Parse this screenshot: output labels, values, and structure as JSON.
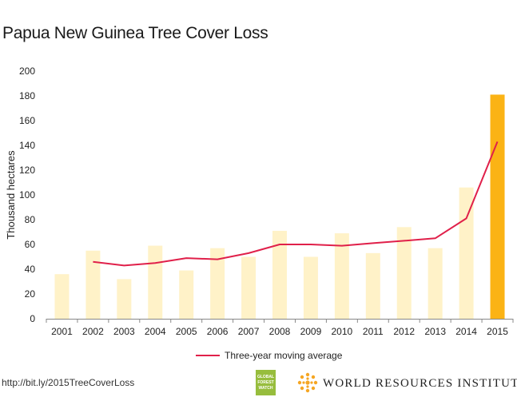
{
  "title": "Papua New Guinea Tree Cover Loss",
  "footer": {
    "url": "http://bit.ly/2015TreeCoverLoss",
    "org": "WORLD RESOURCES INSTITUTE",
    "gfw_logo_text": "GLOBAL FOREST WATCH"
  },
  "colors": {
    "bar": "#fff2c8",
    "bar_highlight": "#fbb315",
    "line": "#e0204a",
    "gfw_green": "#97bd3d",
    "wri_orange": "#f5a623"
  },
  "chart_data": {
    "type": "bar",
    "ylabel": "Thousand hectares",
    "ylim": [
      0,
      200
    ],
    "yticks": [
      0,
      20,
      40,
      60,
      80,
      100,
      120,
      140,
      160,
      180,
      200
    ],
    "grid": false,
    "legend_position": "bottom",
    "categories": [
      "2001",
      "2002",
      "2003",
      "2004",
      "2005",
      "2006",
      "2007",
      "2008",
      "2009",
      "2010",
      "2011",
      "2012",
      "2013",
      "2014",
      "2015"
    ],
    "series": [
      {
        "type": "bar",
        "values": [
          36,
          55,
          32,
          59,
          39,
          57,
          50,
          71,
          50,
          69,
          53,
          74,
          57,
          106,
          181
        ],
        "highlight_index": 14
      },
      {
        "type": "line",
        "name": "Three-year moving average",
        "values": [
          null,
          46,
          43,
          45,
          49,
          48,
          53,
          60,
          60,
          59,
          61,
          63,
          65,
          81,
          143
        ]
      }
    ]
  }
}
